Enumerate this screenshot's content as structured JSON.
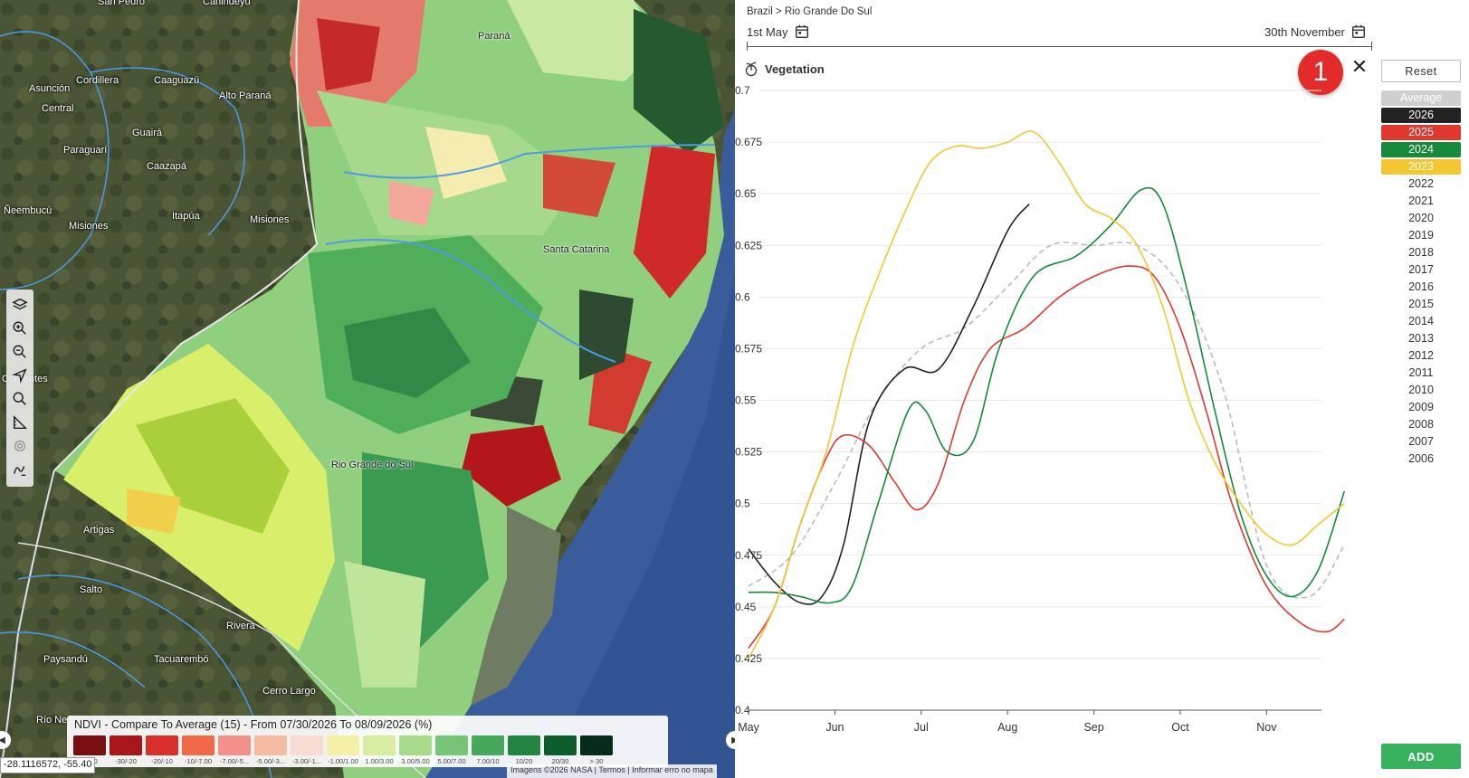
{
  "map": {
    "places": [
      {
        "name": "Paraná",
        "style": "dark"
      },
      {
        "name": "Cordillera"
      },
      {
        "name": "Caaguazú"
      },
      {
        "name": "Alto Paraná"
      },
      {
        "name": "Asunción"
      },
      {
        "name": "Central"
      },
      {
        "name": "Paraguarí"
      },
      {
        "name": "Guairá"
      },
      {
        "name": "Caazapá"
      },
      {
        "name": "Ñeembucú"
      },
      {
        "name": "Misiones"
      },
      {
        "name": "Itapúa"
      },
      {
        "name": "Misiones"
      },
      {
        "name": "Santa Catarina",
        "style": "dark"
      },
      {
        "name": "Corrientes"
      },
      {
        "name": "Rio Grande do Sul",
        "style": "dark"
      },
      {
        "name": "Artigas"
      },
      {
        "name": "Salto"
      },
      {
        "name": "Rivera"
      },
      {
        "name": "Paysandú"
      },
      {
        "name": "Tacuarembó"
      },
      {
        "name": "Cerro Largo"
      },
      {
        "name": "Río Ne"
      },
      {
        "name": "San Pedro"
      },
      {
        "name": "Canindeyú"
      }
    ],
    "tools": [
      "layers-icon",
      "zoom-in-icon",
      "zoom-out-icon",
      "navigate-icon",
      "search-icon",
      "measure-icon",
      "target-icon",
      "draw-icon"
    ],
    "coord_text": "-28.1116572, -55.40",
    "attribution": "Imagens ©2026 NASA  |  Termos  |  Informar erro no mapa",
    "legend": {
      "title": "NDVI - Compare To Average (15) - From 07/30/2026 To 08/09/2026 (%)",
      "items": [
        {
          "label": "< -30",
          "color": "#7a0f12"
        },
        {
          "label": "-30/-20",
          "color": "#a9151b"
        },
        {
          "label": "-20/-10",
          "color": "#d9302c"
        },
        {
          "label": "-10/-7.00",
          "color": "#f26a45"
        },
        {
          "label": "-7.00/-5...",
          "color": "#f3908b"
        },
        {
          "label": "-5.00/-3...",
          "color": "#f6bba3"
        },
        {
          "label": "-3.00/-1...",
          "color": "#f8dcd2"
        },
        {
          "label": "-1.00/1.00",
          "color": "#f6f0a6"
        },
        {
          "label": "1.00/3.00",
          "color": "#d8eca2"
        },
        {
          "label": "3.00/5.00",
          "color": "#a8da8a"
        },
        {
          "label": "5.00/7.00",
          "color": "#78c477"
        },
        {
          "label": "7.00/10",
          "color": "#45a85a"
        },
        {
          "label": "10/20",
          "color": "#248542"
        },
        {
          "label": "20/30",
          "color": "#0d5d2d"
        },
        {
          "label": "> 30",
          "color": "#082c1c"
        }
      ]
    }
  },
  "panel": {
    "breadcrumb": "Brazil > Rio Grande Do Sul",
    "date_start": "1st May",
    "date_end": "30th November",
    "title": "Vegetation",
    "badge": "1",
    "reset_label": "Reset",
    "add_label": "ADD",
    "years": [
      {
        "label": "Average",
        "bg": "#cfcfcf",
        "fg": "#ffffff"
      },
      {
        "label": "2026",
        "bg": "#222222",
        "fg": "#ffffff"
      },
      {
        "label": "2025",
        "bg": "#e0382f",
        "fg": "#ffffff"
      },
      {
        "label": "2024",
        "bg": "#178a3a",
        "fg": "#ffffff"
      },
      {
        "label": "2023",
        "bg": "#f3c731",
        "fg": "#ffffff"
      },
      {
        "label": "2022"
      },
      {
        "label": "2021"
      },
      {
        "label": "2020"
      },
      {
        "label": "2019"
      },
      {
        "label": "2018"
      },
      {
        "label": "2017"
      },
      {
        "label": "2016"
      },
      {
        "label": "2015"
      },
      {
        "label": "2014"
      },
      {
        "label": "2013"
      },
      {
        "label": "2012"
      },
      {
        "label": "2011"
      },
      {
        "label": "2010"
      },
      {
        "label": "2009"
      },
      {
        "label": "2008"
      },
      {
        "label": "2007"
      },
      {
        "label": "2006"
      }
    ]
  },
  "chart_data": {
    "type": "line",
    "title": "Vegetation",
    "xlabel": "",
    "ylabel": "",
    "x_ticks": [
      "May",
      "Jun",
      "Jul",
      "Aug",
      "Sep",
      "Oct",
      "Nov"
    ],
    "ylim": [
      0.4,
      0.7
    ],
    "y_ticks": [
      "0.4",
      "0.425",
      "0.45",
      "0.475",
      "0.5",
      "0.525",
      "0.55",
      "0.575",
      "0.6",
      "0.625",
      "0.65",
      "0.675",
      "0.7"
    ],
    "grid": "horizontal",
    "series": [
      {
        "name": "Average",
        "color": "#bbbbbb",
        "dashed": true,
        "x": [
          0,
          0.5,
          1,
          1.5,
          2,
          2.5,
          3,
          3.5,
          4,
          4.5,
          5,
          5.5,
          6,
          6.5,
          6.9
        ],
        "y": [
          0.46,
          0.475,
          0.51,
          0.55,
          0.575,
          0.585,
          0.605,
          0.625,
          0.625,
          0.625,
          0.605,
          0.555,
          0.47,
          0.455,
          0.48
        ]
      },
      {
        "name": "2026",
        "color": "#222222",
        "x": [
          0,
          0.3,
          0.6,
          0.85,
          1.1,
          1.4,
          1.8,
          2.2,
          2.6,
          3.0,
          3.25
        ],
        "y": [
          0.478,
          0.462,
          0.452,
          0.455,
          0.48,
          0.54,
          0.565,
          0.565,
          0.595,
          0.632,
          0.645
        ]
      },
      {
        "name": "2025",
        "color": "#e0382f",
        "x": [
          0,
          0.3,
          0.6,
          0.9,
          1.1,
          1.4,
          1.7,
          1.95,
          2.2,
          2.5,
          2.8,
          3.2,
          3.6,
          4.0,
          4.4,
          4.7,
          5.0,
          5.3,
          5.6,
          6.0,
          6.4,
          6.7,
          6.9
        ],
        "y": [
          0.43,
          0.45,
          0.49,
          0.522,
          0.533,
          0.528,
          0.51,
          0.497,
          0.51,
          0.55,
          0.575,
          0.585,
          0.6,
          0.61,
          0.615,
          0.61,
          0.585,
          0.545,
          0.5,
          0.46,
          0.442,
          0.438,
          0.444
        ]
      },
      {
        "name": "2024",
        "color": "#178a3a",
        "x": [
          0,
          0.3,
          0.6,
          0.95,
          1.2,
          1.5,
          1.85,
          2.05,
          2.3,
          2.6,
          2.9,
          3.3,
          3.8,
          4.2,
          4.55,
          4.8,
          5.1,
          5.4,
          5.7,
          6.0,
          6.3,
          6.6,
          6.9
        ],
        "y": [
          0.457,
          0.457,
          0.455,
          0.452,
          0.46,
          0.5,
          0.545,
          0.545,
          0.525,
          0.53,
          0.575,
          0.61,
          0.62,
          0.635,
          0.652,
          0.645,
          0.6,
          0.545,
          0.495,
          0.465,
          0.455,
          0.468,
          0.506
        ]
      },
      {
        "name": "2023",
        "color": "#f3c731",
        "x": [
          0,
          0.3,
          0.6,
          0.9,
          1.2,
          1.5,
          1.8,
          2.1,
          2.4,
          2.7,
          3.0,
          3.3,
          3.6,
          3.9,
          4.2,
          4.5,
          4.8,
          5.1,
          5.4,
          5.7,
          6.0,
          6.3,
          6.6,
          6.9
        ],
        "y": [
          0.425,
          0.45,
          0.49,
          0.525,
          0.575,
          0.61,
          0.64,
          0.665,
          0.673,
          0.672,
          0.675,
          0.68,
          0.665,
          0.645,
          0.638,
          0.625,
          0.595,
          0.55,
          0.52,
          0.5,
          0.485,
          0.48,
          0.49,
          0.5
        ]
      }
    ]
  }
}
